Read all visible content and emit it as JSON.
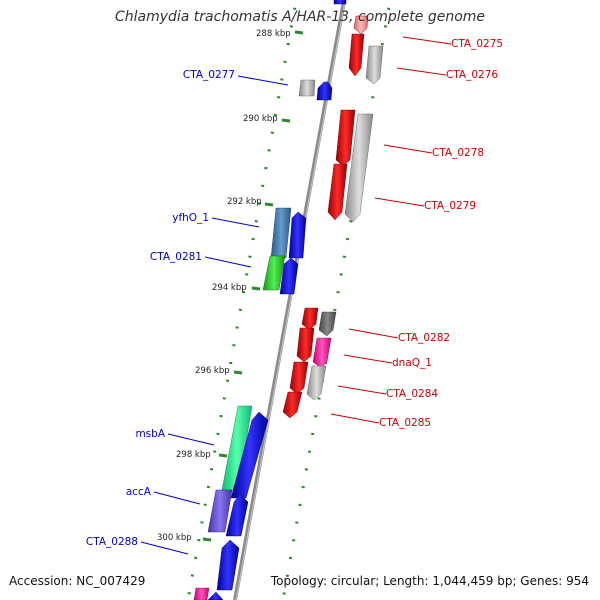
{
  "title": "Chlamydia trachomatis A/HAR-13, complete genome",
  "accession_text": "Accession: NC_007429",
  "stats_text": "Topology: circular; Length: 1,044,459 bp; Genes: 954",
  "colors": {
    "backbone": "#8a8a8a",
    "dots": "#2a8a2a",
    "label_left": "#0000cc",
    "label_right": "#cc0000"
  },
  "ticks": [
    "288 kbp",
    "290 kbp",
    "292 kbp",
    "294 kbp",
    "296 kbp",
    "298 kbp",
    "300 kbp"
  ],
  "genes_left": [
    "CTA_0277",
    "yfhO_1",
    "CTA_0281",
    "msbA",
    "accA",
    "CTA_0288"
  ],
  "genes_right": [
    "CTA_0275",
    "CTA_0276",
    "CTA_0278",
    "CTA_0279",
    "CTA_0282",
    "dnaQ_1",
    "CTA_0284",
    "CTA_0285"
  ]
}
